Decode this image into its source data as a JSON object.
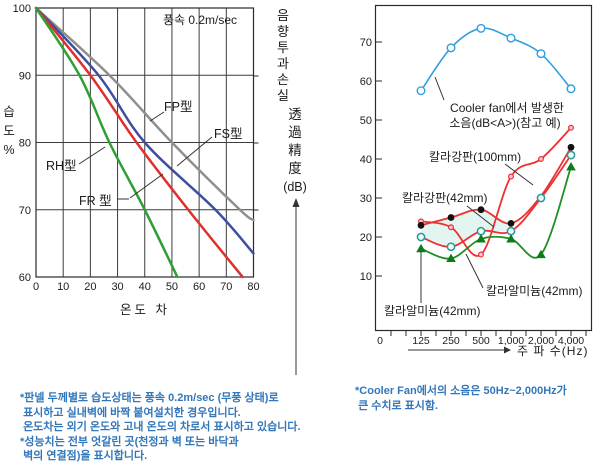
{
  "left_chart": {
    "wind_label": "풍속 0.2m/sec",
    "y_axis_label": "습도%",
    "x_axis_label": "온도 차",
    "x_ticks": [
      "0",
      "10",
      "20",
      "30",
      "40",
      "50",
      "60",
      "70",
      "80"
    ],
    "y_ticks": [
      "100",
      "90",
      "80",
      "70",
      "60"
    ],
    "x_range": [
      0,
      80
    ],
    "y_range": [
      60,
      100
    ],
    "series": [
      {
        "label": "FP型",
        "color": "#8f8f8f",
        "points": [
          [
            0,
            100
          ],
          [
            27,
            90
          ],
          [
            50,
            80
          ],
          [
            75,
            70
          ],
          [
            80,
            68.5
          ]
        ]
      },
      {
        "label": "FS型",
        "color": "#3d4f9e",
        "points": [
          [
            0,
            100
          ],
          [
            23,
            90
          ],
          [
            40,
            80
          ],
          [
            66,
            70
          ],
          [
            80,
            63.5
          ]
        ]
      },
      {
        "label": "FR 型",
        "color": "#e02f2f",
        "points": [
          [
            0,
            100
          ],
          [
            20,
            90
          ],
          [
            37,
            80
          ],
          [
            56,
            70
          ],
          [
            76,
            60
          ]
        ]
      },
      {
        "label": "RH型",
        "color": "#2f9e33",
        "points": [
          [
            0,
            100
          ],
          [
            16,
            90
          ],
          [
            27,
            80
          ],
          [
            40,
            70
          ],
          [
            52,
            60
          ]
        ]
      }
    ]
  },
  "mid_axis": {
    "ko": "음향투과손실",
    "hanja": "透過精度",
    "unit": "(dB)"
  },
  "right_chart": {
    "x_axis_label": "주 파 수(Hz)",
    "x_ticks": [
      "0",
      "125",
      "250",
      "500",
      "1,000",
      "2,000",
      "4,000"
    ],
    "y_ticks": [
      "70",
      "60",
      "50",
      "40",
      "30",
      "20",
      "10"
    ],
    "frequencies": [
      125,
      250,
      500,
      1000,
      2000,
      4000
    ],
    "fan_label_line1": "Cooler fan에서 발생한",
    "fan_label_line2": "소음(dB<A>)(참고 예)",
    "series": [
      {
        "label": "Cooler fan에서 발생한 소음(dB<A>)(참고 예)",
        "marker": "open-circle",
        "color": "#2e9fe0",
        "values": [
          57.5,
          68.5,
          73.5,
          71,
          67,
          58
        ]
      },
      {
        "label": "칼라강판(100mm)",
        "marker": "pink-dot",
        "color": "#ee3030",
        "values": [
          24,
          22.5,
          15.5,
          35.5,
          40,
          48
        ]
      },
      {
        "label": "칼라강판(42mm)",
        "marker": "black-dot",
        "color": "#ee3030",
        "values": [
          23,
          25,
          27,
          23.5,
          30.5,
          43
        ]
      },
      {
        "label": "칼라알미늄(42mm)",
        "marker": "teal-circle",
        "color": "#ee3030",
        "values": [
          20,
          17.5,
          21.5,
          21.5,
          30,
          41
        ]
      },
      {
        "label": "칼라알미늄(42mm)",
        "marker": "green-triangle",
        "color": "#1e9122",
        "values": [
          17,
          14.5,
          19.5,
          19.5,
          15.5,
          38
        ]
      }
    ]
  },
  "footnotes": {
    "left": "*판넬 두께별로 습도상태는 풍속 0.2m/sec (무풍 상태)로\n 표시하고 실내벽에 바짝 붙여설치한 경우입니다.\n 온도차는 외기 온도와 고내 온도의 차로서 표시하고 있습니다.\n*성능치는 전부 엇갈린 곳(천정과 벽 또는 바닥과\n 벽의 연결점)을 표시합니다.",
    "right": "*Cooler Fan에서의 소음은 50Hz~2,000Hz가\n 큰 수치로 표시함."
  },
  "chart_data": [
    {
      "type": "line",
      "title": "습도 상태 (풍속 0.2m/sec)",
      "xlabel": "온도 차",
      "ylabel": "습도%",
      "xlim": [
        0,
        80
      ],
      "ylim": [
        60,
        100
      ],
      "grid": true,
      "series": [
        {
          "name": "FP型",
          "points_x_y": [
            [
              0,
              100
            ],
            [
              27,
              90
            ],
            [
              50,
              80
            ],
            [
              75,
              70
            ],
            [
              80,
              68.5
            ]
          ]
        },
        {
          "name": "FS型",
          "points_x_y": [
            [
              0,
              100
            ],
            [
              23,
              90
            ],
            [
              40,
              80
            ],
            [
              66,
              70
            ],
            [
              80,
              63.5
            ]
          ]
        },
        {
          "name": "FR 型",
          "points_x_y": [
            [
              0,
              100
            ],
            [
              20,
              90
            ],
            [
              37,
              80
            ],
            [
              56,
              70
            ],
            [
              76,
              60
            ]
          ]
        },
        {
          "name": "RH型",
          "points_x_y": [
            [
              0,
              100
            ],
            [
              16,
              90
            ],
            [
              27,
              80
            ],
            [
              40,
              70
            ],
            [
              52,
              60
            ]
          ]
        }
      ]
    },
    {
      "type": "line",
      "title": "음향투과손실 透過精度(dB) vs 주파수(Hz)",
      "xlabel": "주 파 수(Hz)",
      "ylabel": "음향투과손실 透過精度(dB)",
      "x": [
        125,
        250,
        500,
        1000,
        2000,
        4000
      ],
      "ylim": [
        10,
        75
      ],
      "grid": false,
      "series": [
        {
          "name": "Cooler fan에서 발생한 소음(dB<A>)(참고 예)",
          "values": [
            57.5,
            68.5,
            73.5,
            71,
            67,
            58
          ]
        },
        {
          "name": "칼라강판(100mm)",
          "values": [
            24,
            22.5,
            15.5,
            35.5,
            40,
            48
          ]
        },
        {
          "name": "칼라강판(42mm)",
          "values": [
            23,
            25,
            27,
            23.5,
            30.5,
            43
          ]
        },
        {
          "name": "칼라알미늄(42mm) (circles)",
          "values": [
            20,
            17.5,
            21.5,
            21.5,
            30,
            41
          ]
        },
        {
          "name": "칼라알미늄(42mm) (triangles)",
          "values": [
            17,
            14.5,
            19.5,
            19.5,
            15.5,
            38
          ]
        }
      ]
    }
  ]
}
